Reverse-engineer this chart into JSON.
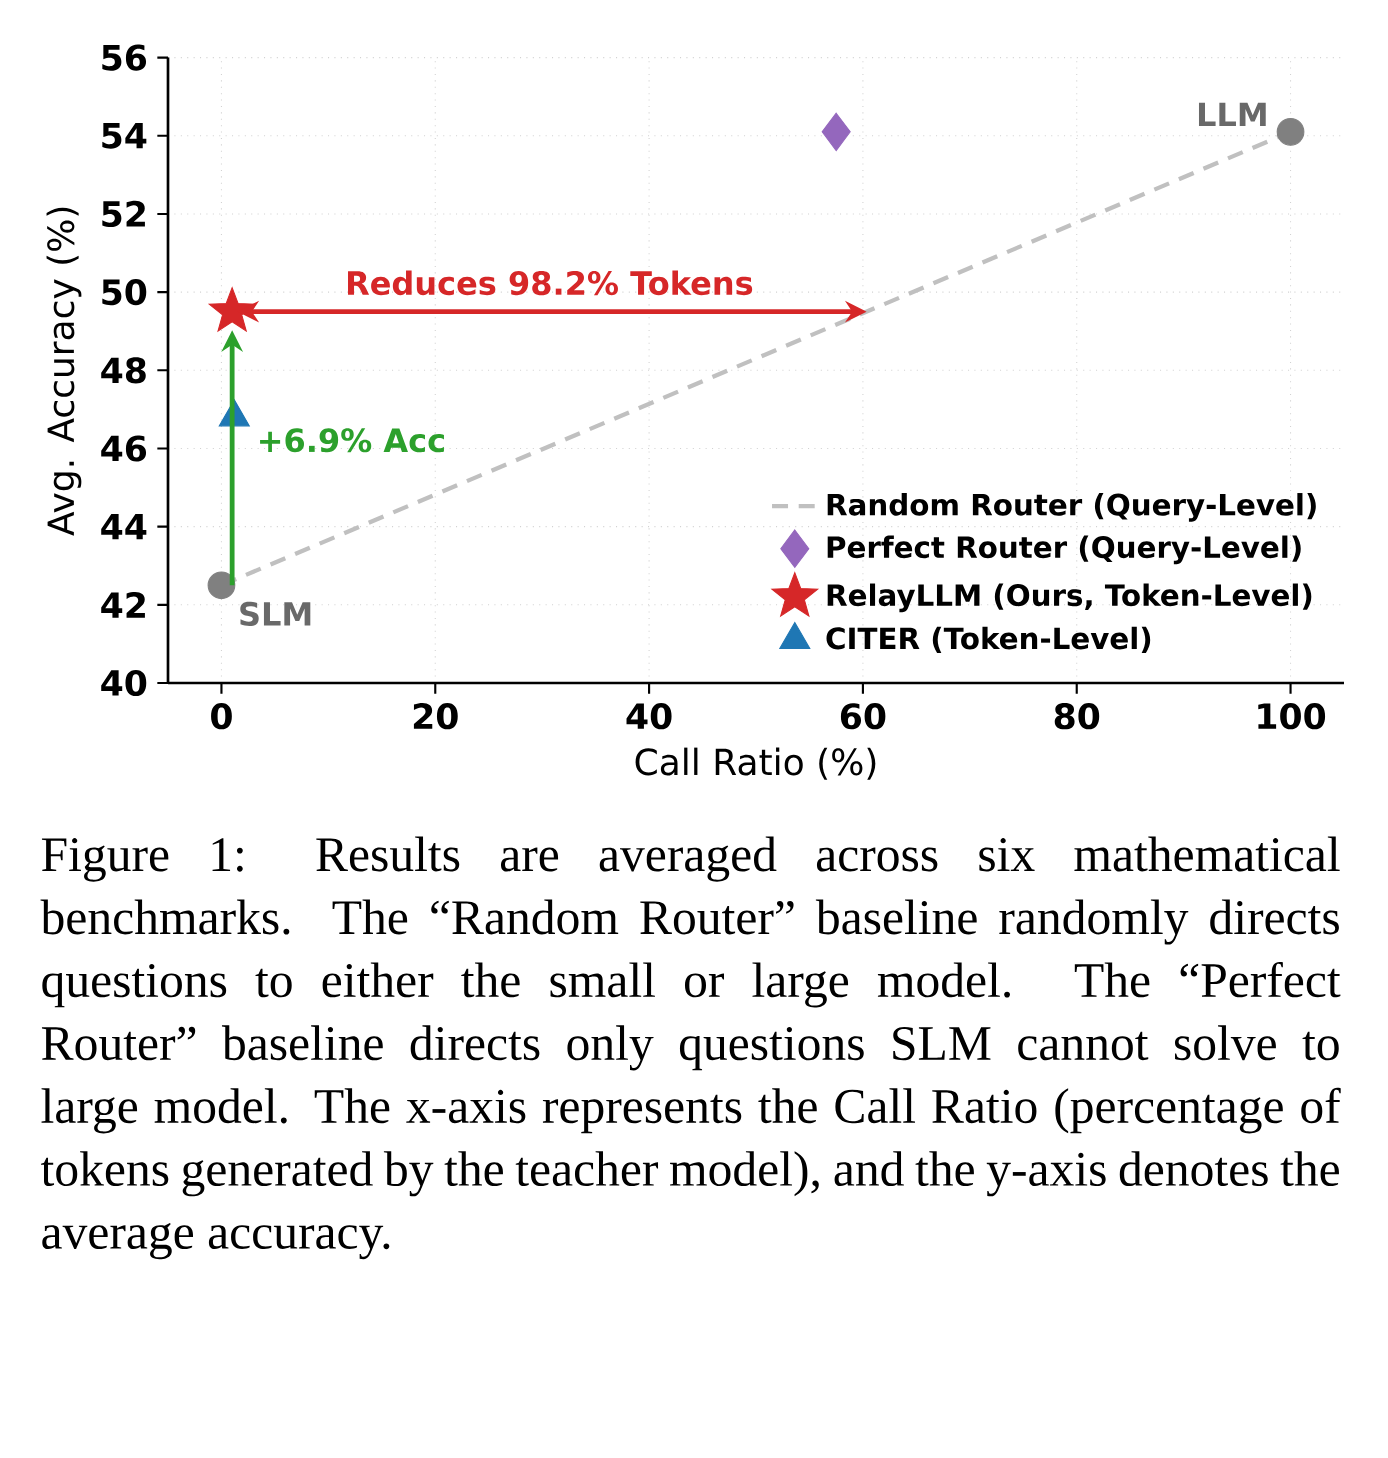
{
  "chart_data": {
    "type": "scatter",
    "xlabel": "Call Ratio (%)",
    "ylabel": "Avg. Accuracy (%)",
    "xlim": [
      -5,
      105
    ],
    "xticks": [
      0,
      20,
      40,
      60,
      80,
      100
    ],
    "ylim": [
      40,
      56
    ],
    "yticks": [
      40,
      42,
      44,
      46,
      48,
      50,
      52,
      54,
      56
    ],
    "grid": true,
    "legend": "bottom right",
    "series": [
      {
        "type": "line",
        "name": "Random Router (Query-Level)",
        "color": "#c0c0c0",
        "x": [
          0,
          100
        ],
        "values": [
          42.5,
          54.1
        ],
        "line_style": "dashed",
        "marker": "none"
      },
      {
        "name": "Perfect Router (Query-Level)",
        "color": "#9467bd",
        "x": [
          57.5
        ],
        "values": [
          54.1
        ],
        "marker": "diamond"
      },
      {
        "name": "RelayLLM (Ours, Token-Level)",
        "color": "#d62728",
        "x": [
          1.0
        ],
        "values": [
          49.5
        ],
        "marker": "star"
      },
      {
        "name": "CITER (Token-Level)",
        "color": "#1f77b4",
        "x": [
          1.2
        ],
        "values": [
          46.8
        ],
        "marker": "triangle"
      },
      {
        "color": "#808080",
        "x": [
          0,
          100
        ],
        "values": [
          42.5,
          54.1
        ],
        "marker": "circle"
      }
    ],
    "annotations": [
      {
        "text": "SLM",
        "x": 0,
        "y": 42.5
      },
      {
        "text": "LLM",
        "x": 100,
        "y": 54.1
      },
      "Reduces 98.2% Tokens",
      "+6.9% Acc",
      "Figure 1: Results are averaged across six mathematical benchmarks. The “Random Router” baseline randomly directs questions to either the small or large model. The “Perfect Router” baseline directs only questions SLM cannot solve to large model. The x-axis represents the Call Ratio (percentage of tokens generated by the teacher model), and the y-axis denotes the average accuracy."
    ]
  }
}
